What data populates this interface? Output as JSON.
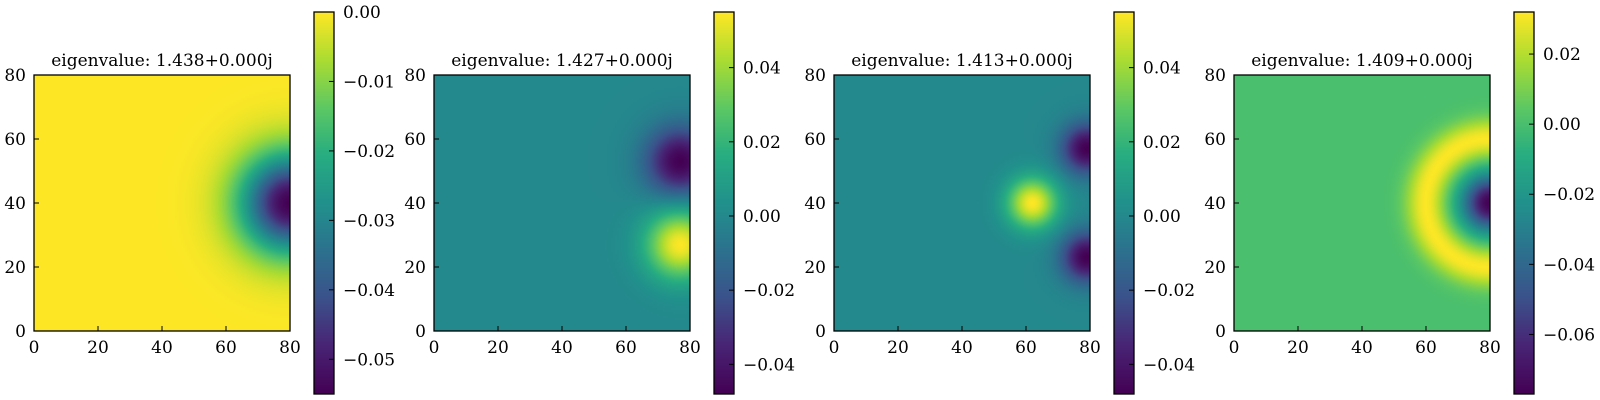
{
  "figure": {
    "panels": [
      {
        "title": "eigenvalue: 1.438+0.000j"
      },
      {
        "title": "eigenvalue: 1.427+0.000j"
      },
      {
        "title": "eigenvalue: 1.413+0.000j"
      },
      {
        "title": "eigenvalue: 1.409+0.000j"
      }
    ]
  },
  "chart_data": [
    {
      "type": "heatmap",
      "title": "eigenvalue: 1.438+0.000j",
      "colormap": "viridis",
      "xlim": [
        0,
        80
      ],
      "ylim": [
        0,
        80
      ],
      "xticks": [
        "0",
        "20",
        "40",
        "60",
        "80"
      ],
      "yticks": [
        "0",
        "20",
        "40",
        "60",
        "80"
      ],
      "colorbar": {
        "range": [
          -0.055,
          0.0
        ],
        "ticks": [
          0.0,
          -0.01,
          -0.02,
          -0.03,
          -0.04,
          -0.05
        ],
        "tick_labels": [
          "0.00",
          "−0.01",
          "−0.02",
          "−0.03",
          "−0.04",
          "−0.05"
        ]
      },
      "field": {
        "background": 0.0,
        "lobes": [
          {
            "x": 80,
            "y": 40,
            "amplitude": -0.055,
            "sigma": 11
          }
        ]
      }
    },
    {
      "type": "heatmap",
      "title": "eigenvalue: 1.427+0.000j",
      "colormap": "viridis",
      "xlim": [
        0,
        80
      ],
      "ylim": [
        0,
        80
      ],
      "xticks": [
        "0",
        "20",
        "40",
        "60",
        "80"
      ],
      "yticks": [
        "0",
        "20",
        "40",
        "60",
        "80"
      ],
      "colorbar": {
        "range": [
          -0.048,
          0.055
        ],
        "ticks": [
          0.04,
          0.02,
          0.0,
          -0.02,
          -0.04
        ],
        "tick_labels": [
          "0.04",
          "0.02",
          "0.00",
          "−0.02",
          "−0.04"
        ]
      },
      "field": {
        "background": 0.0,
        "lobes": [
          {
            "x": 77,
            "y": 53,
            "amplitude": -0.048,
            "sigma": 7.5
          },
          {
            "x": 77,
            "y": 27,
            "amplitude": 0.055,
            "sigma": 7.5
          }
        ]
      }
    },
    {
      "type": "heatmap",
      "title": "eigenvalue: 1.413+0.000j",
      "colormap": "viridis",
      "xlim": [
        0,
        80
      ],
      "ylim": [
        0,
        80
      ],
      "xticks": [
        "0",
        "20",
        "40",
        "60",
        "80"
      ],
      "yticks": [
        "0",
        "20",
        "40",
        "60",
        "80"
      ],
      "colorbar": {
        "range": [
          -0.048,
          0.055
        ],
        "ticks": [
          0.04,
          0.02,
          0.0,
          -0.02,
          -0.04
        ],
        "tick_labels": [
          "0.04",
          "0.02",
          "0.00",
          "−0.02",
          "−0.04"
        ]
      },
      "field": {
        "background": 0.0,
        "lobes": [
          {
            "x": 62,
            "y": 40,
            "amplitude": 0.055,
            "sigma": 5.5
          },
          {
            "x": 79,
            "y": 57,
            "amplitude": -0.048,
            "sigma": 5.5
          },
          {
            "x": 79,
            "y": 23,
            "amplitude": -0.048,
            "sigma": 5.5
          }
        ]
      }
    },
    {
      "type": "heatmap",
      "title": "eigenvalue: 1.409+0.000j",
      "colormap": "viridis",
      "xlim": [
        0,
        80
      ],
      "ylim": [
        0,
        80
      ],
      "xticks": [
        "0",
        "20",
        "40",
        "60",
        "80"
      ],
      "yticks": [
        "0",
        "20",
        "40",
        "60",
        "80"
      ],
      "colorbar": {
        "range": [
          -0.077,
          0.032
        ],
        "ticks": [
          0.02,
          0.0,
          -0.02,
          -0.04,
          -0.06
        ],
        "tick_labels": [
          "0.02",
          "0.00",
          "−0.02",
          "−0.04",
          "−0.06"
        ]
      },
      "field": {
        "background": 0.0,
        "lobes": [
          {
            "x": 80,
            "y": 40,
            "amplitude": -0.077,
            "sigma": 6
          }
        ],
        "rings": [
          {
            "x": 80,
            "y": 40,
            "radius": 20,
            "amplitude": 0.032,
            "width": 4.5
          }
        ]
      }
    }
  ]
}
